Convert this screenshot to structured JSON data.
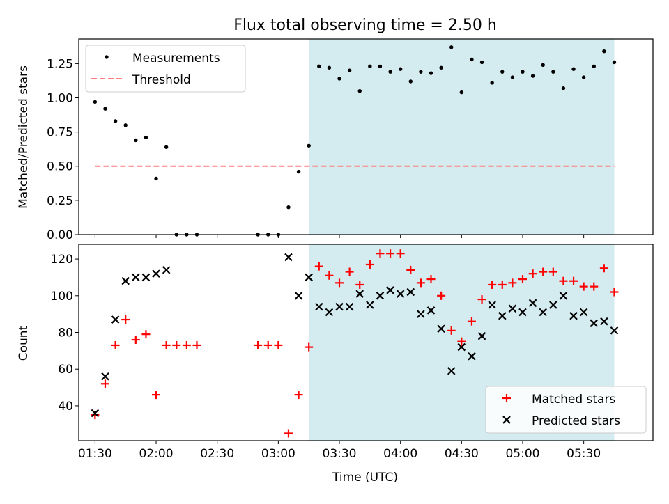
{
  "chart_data": [
    {
      "type": "scatter",
      "title": "Flux total observing time = 2.50 h",
      "xlabel": "",
      "ylabel": "Matched/Predicted stars",
      "ylim": [
        0,
        1.43
      ],
      "yticks": [
        "0.00",
        "0.25",
        "0.50",
        "0.75",
        "1.00",
        "1.25"
      ],
      "xlim": [
        "01:22",
        "06:04"
      ],
      "shaded_region": {
        "from": "03:15",
        "to": "05:45",
        "color": "#d4ebf0"
      },
      "threshold": {
        "name": "Threshold",
        "value": 0.5,
        "from": "01:30",
        "to": "05:45",
        "color": "#ff7f7f"
      },
      "legend_position": "upper-left",
      "series": [
        {
          "name": "Measurements",
          "color": "#000000",
          "x": [
            "01:30",
            "01:35",
            "01:40",
            "01:45",
            "01:50",
            "01:55",
            "02:00",
            "02:05",
            "02:10",
            "02:15",
            "02:20",
            "02:50",
            "02:55",
            "03:00",
            "03:05",
            "03:10",
            "03:15",
            "03:20",
            "03:25",
            "03:30",
            "03:35",
            "03:40",
            "03:45",
            "03:50",
            "03:55",
            "04:00",
            "04:05",
            "04:10",
            "04:15",
            "04:20",
            "04:25",
            "04:30",
            "04:35",
            "04:40",
            "04:45",
            "04:50",
            "04:55",
            "05:00",
            "05:05",
            "05:10",
            "05:15",
            "05:20",
            "05:25",
            "05:30",
            "05:35",
            "05:40",
            "05:45"
          ],
          "y": [
            0.97,
            0.92,
            0.83,
            0.8,
            0.69,
            0.71,
            0.41,
            0.64,
            0.0,
            0.0,
            0.0,
            0.0,
            0.0,
            0.0,
            0.2,
            0.46,
            0.65,
            1.23,
            1.22,
            1.14,
            1.2,
            1.05,
            1.23,
            1.23,
            1.19,
            1.21,
            1.12,
            1.19,
            1.18,
            1.22,
            1.37,
            1.04,
            1.28,
            1.26,
            1.11,
            1.19,
            1.15,
            1.19,
            1.16,
            1.24,
            1.19,
            1.07,
            1.21,
            1.15,
            1.23,
            1.34,
            1.26
          ]
        }
      ]
    },
    {
      "type": "scatter",
      "xlabel": "Time (UTC)",
      "ylabel": "Count",
      "ylim": [
        21,
        128
      ],
      "yticks": [
        "40",
        "60",
        "80",
        "100",
        "120"
      ],
      "xlim": [
        "01:22",
        "06:04"
      ],
      "xticks": [
        "01:30",
        "02:00",
        "02:30",
        "03:00",
        "03:30",
        "04:00",
        "04:30",
        "05:00",
        "05:30"
      ],
      "shaded_region": {
        "from": "03:15",
        "to": "05:45",
        "color": "#d4ebf0"
      },
      "legend_position": "lower-right",
      "series": [
        {
          "name": "Matched stars",
          "marker": "+",
          "color": "#ff0000",
          "x": [
            "01:30",
            "01:35",
            "01:40",
            "01:45",
            "01:50",
            "01:55",
            "02:00",
            "02:05",
            "02:10",
            "02:15",
            "02:20",
            "02:50",
            "02:55",
            "03:00",
            "03:05",
            "03:10",
            "03:15",
            "03:20",
            "03:25",
            "03:30",
            "03:35",
            "03:40",
            "03:45",
            "03:50",
            "03:55",
            "04:00",
            "04:05",
            "04:10",
            "04:15",
            "04:20",
            "04:25",
            "04:30",
            "04:35",
            "04:40",
            "04:45",
            "04:50",
            "04:55",
            "05:00",
            "05:05",
            "05:10",
            "05:15",
            "05:20",
            "05:25",
            "05:30",
            "05:35",
            "05:40",
            "05:45"
          ],
          "y": [
            35,
            52,
            73,
            87,
            76,
            79,
            46,
            73,
            73,
            73,
            73,
            73,
            73,
            73,
            25,
            46,
            72,
            116,
            111,
            107,
            113,
            106,
            117,
            123,
            123,
            123,
            114,
            107,
            109,
            100,
            81,
            75,
            86,
            98,
            106,
            106,
            107,
            109,
            112,
            113,
            113,
            108,
            108,
            105,
            105,
            115,
            102
          ]
        },
        {
          "name": "Predicted stars",
          "marker": "x",
          "color": "#000000",
          "x": [
            "01:30",
            "01:35",
            "01:40",
            "01:45",
            "01:50",
            "01:55",
            "02:00",
            "02:05",
            "03:05",
            "03:10",
            "03:15",
            "03:20",
            "03:25",
            "03:30",
            "03:35",
            "03:40",
            "03:45",
            "03:50",
            "03:55",
            "04:00",
            "04:05",
            "04:10",
            "04:15",
            "04:20",
            "04:25",
            "04:30",
            "04:35",
            "04:40",
            "04:45",
            "04:50",
            "04:55",
            "05:00",
            "05:05",
            "05:10",
            "05:15",
            "05:20",
            "05:25",
            "05:30",
            "05:35",
            "05:40",
            "05:45"
          ],
          "y": [
            36,
            56,
            87,
            108,
            110,
            110,
            112,
            114,
            121,
            100,
            110,
            94,
            91,
            94,
            94,
            101,
            95,
            100,
            103,
            101,
            102,
            90,
            92,
            82,
            59,
            72,
            67,
            78,
            95,
            89,
            93,
            91,
            96,
            91,
            95,
            100,
            89,
            91,
            85,
            86,
            81
          ]
        }
      ]
    }
  ]
}
